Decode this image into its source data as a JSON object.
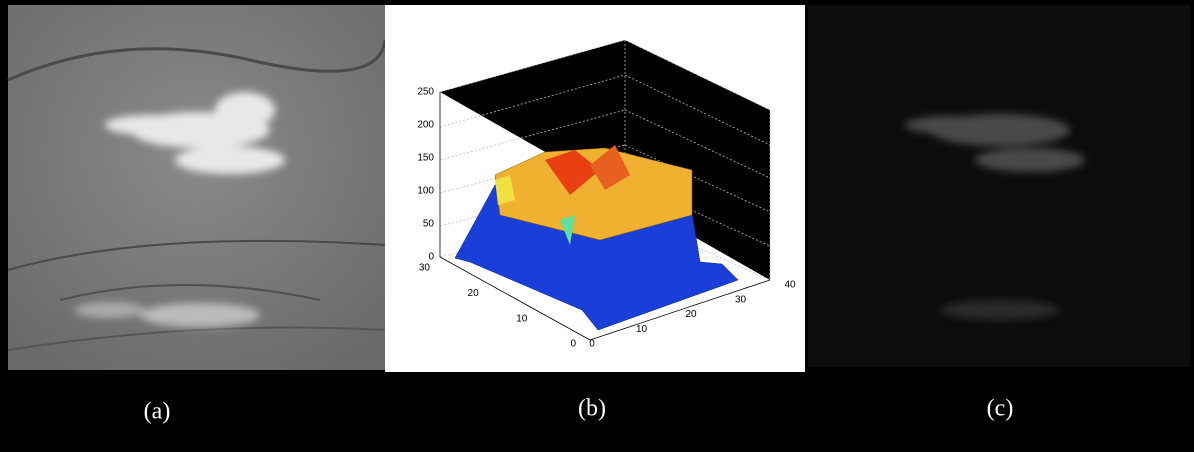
{
  "panels": [
    {
      "label": "(a)"
    },
    {
      "label": "(b)",
      "plot": {
        "z_ticks": [
          0,
          50,
          100,
          150,
          200,
          250
        ],
        "y_ticks": [
          0,
          10,
          20,
          30
        ],
        "x_ticks": [
          0,
          10,
          20,
          30,
          40
        ]
      }
    },
    {
      "label": "(c)"
    }
  ]
}
